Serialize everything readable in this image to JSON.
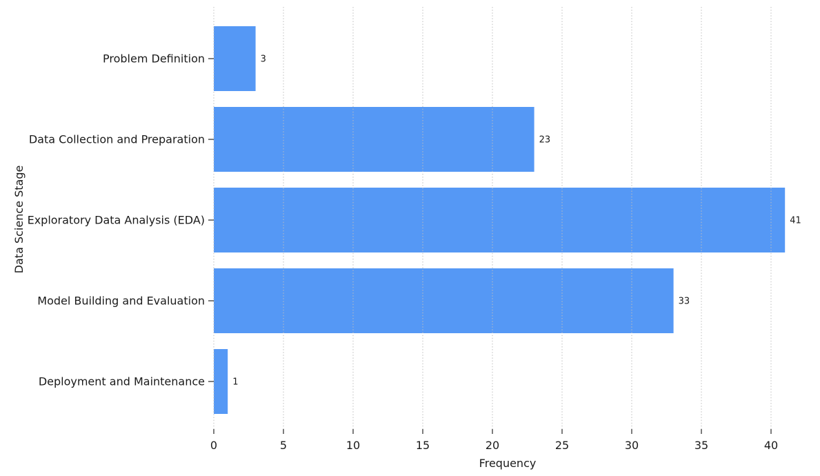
{
  "chart_data": {
    "type": "bar",
    "orientation": "horizontal",
    "title": "",
    "xlabel": "Frequency",
    "ylabel": "Data Science Stage",
    "categories": [
      "Problem Definition",
      "Data Collection and Preparation",
      "Exploratory Data Analysis (EDA)",
      "Model Building and Evaluation",
      "Deployment and Maintenance"
    ],
    "values": [
      3,
      23,
      41,
      33,
      1
    ],
    "bar_value_labels": [
      "3",
      "23",
      "41",
      "33",
      "1"
    ],
    "xticks": [
      0,
      5,
      10,
      15,
      20,
      25,
      30,
      35,
      40
    ],
    "xlim": [
      0,
      42
    ],
    "grid": {
      "axis": "x",
      "style": "dotted",
      "color": "#bdbdbd"
    },
    "legend": "none",
    "colors": {
      "bar": "#5598f5",
      "text": "#1a1a1a",
      "tick_mark": "#262626",
      "background": "#ffffff"
    }
  }
}
